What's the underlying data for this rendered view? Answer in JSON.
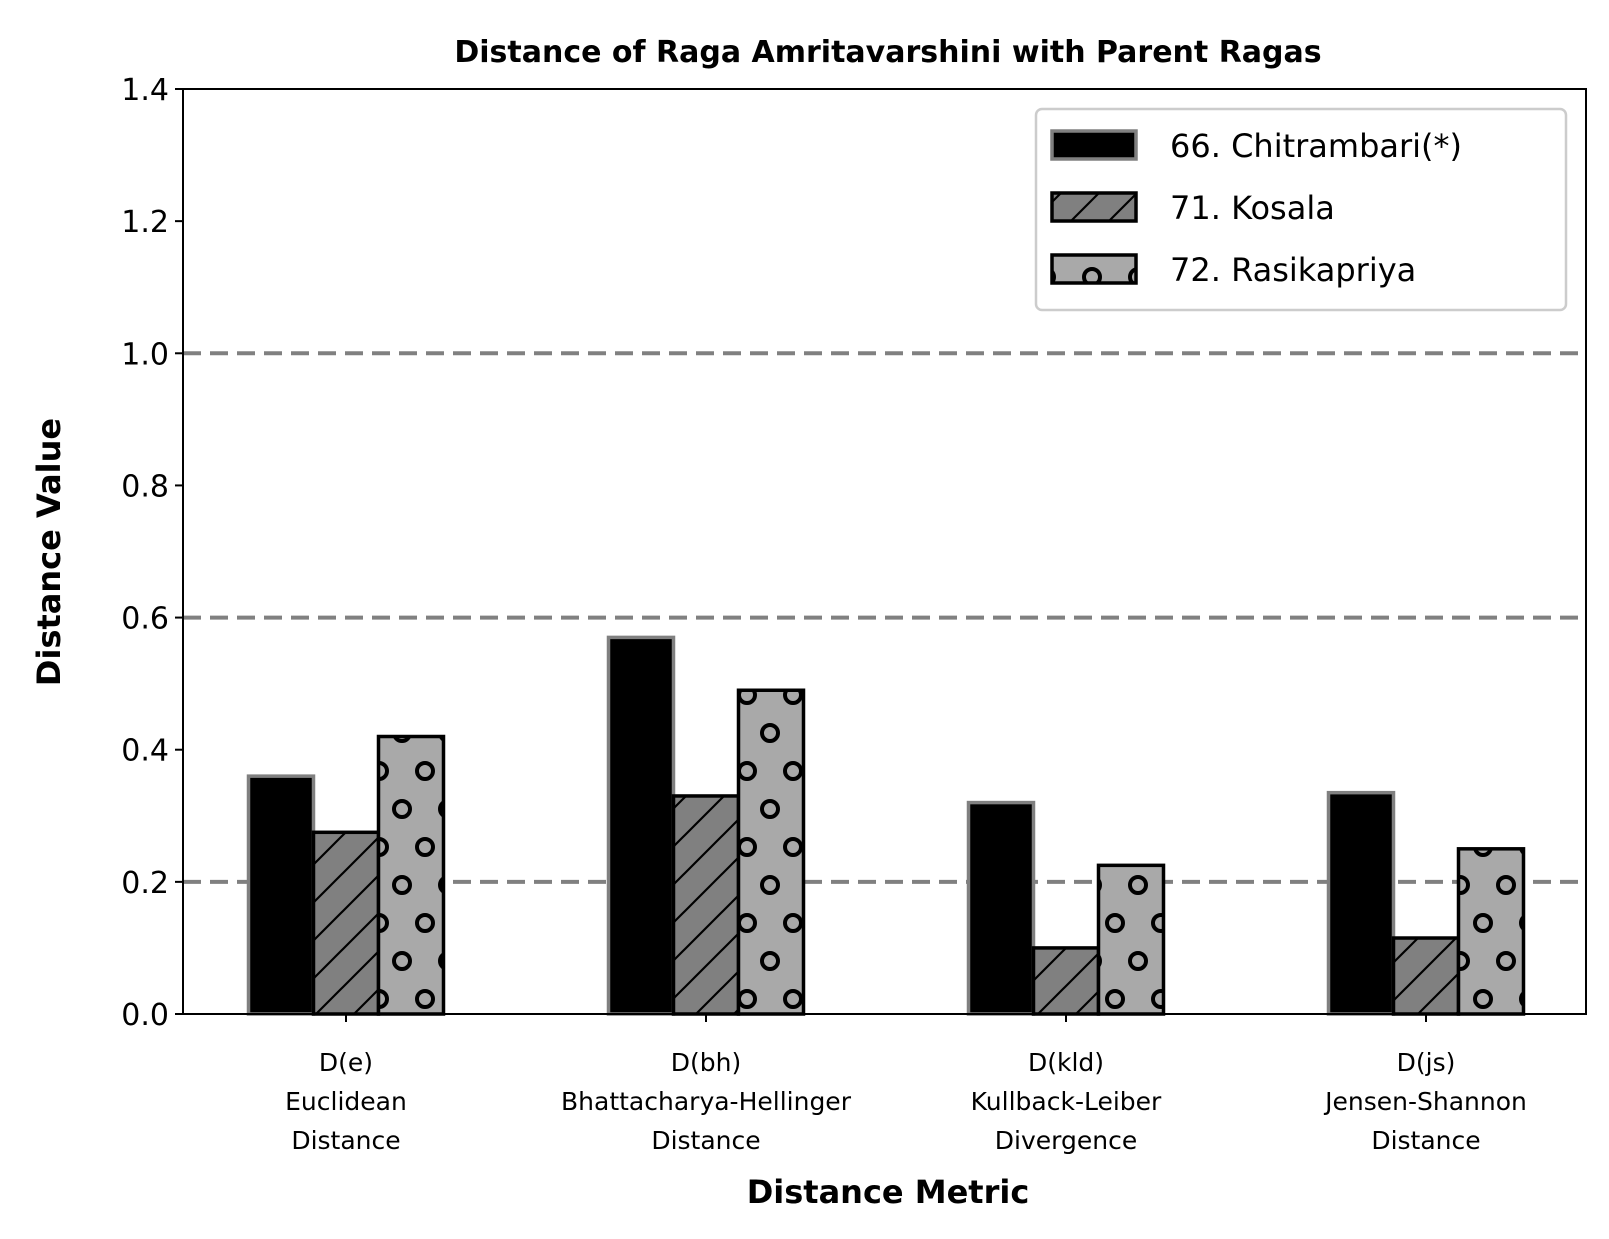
{
  "chart_data": {
    "type": "bar",
    "title": "Distance of Raga Amritavarshini with Parent Ragas",
    "xlabel": "Distance Metric",
    "ylabel": "Distance Value",
    "ylim": [
      0,
      1.4
    ],
    "yticks": [
      "0.0",
      "0.2",
      "0.4",
      "0.6",
      "0.8",
      "1.0",
      "1.2",
      "1.4"
    ],
    "categories": [
      [
        "D(e)",
        "Euclidean",
        "Distance"
      ],
      [
        "D(bh)",
        "Bhattacharya-Hellinger",
        "Distance"
      ],
      [
        "D(kld)",
        "Kullback-Leiber",
        "Divergence"
      ],
      [
        "D(js)",
        "Jensen-Shannon",
        "Distance"
      ]
    ],
    "series": [
      {
        "name": "66. Chitrambari(*)",
        "values": [
          0.36,
          0.57,
          0.32,
          0.335
        ],
        "color": "#000000",
        "edge": "#808080",
        "hatch": "none"
      },
      {
        "name": "71. Kosala",
        "values": [
          0.275,
          0.33,
          0.1,
          0.115
        ],
        "color": "#808080",
        "edge": "#000000",
        "hatch": "diagonal"
      },
      {
        "name": "72. Rasikapriya",
        "values": [
          0.42,
          0.49,
          0.225,
          0.25
        ],
        "color": "#a9a9a9",
        "edge": "#000000",
        "hatch": "circles"
      }
    ],
    "reference_lines": [
      0.2,
      0.6,
      1.0
    ],
    "reference_line_color": "#808080",
    "grid": false,
    "legend_position": "top-right"
  }
}
